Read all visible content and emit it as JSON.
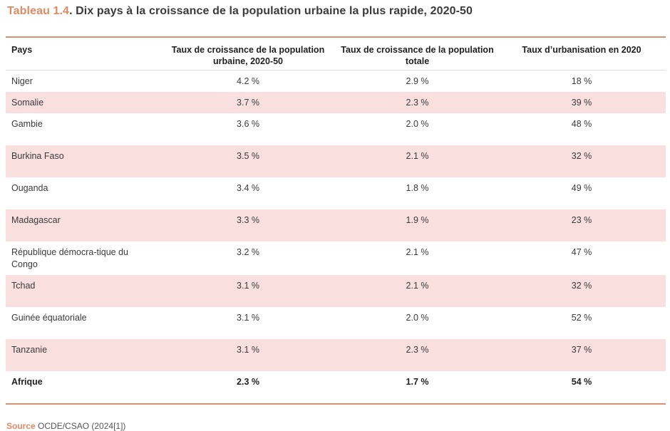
{
  "title": {
    "tag": "Tableau 1.4",
    "text": ". Dix pays à la croissance de la population urbaine la plus rapide, 2020-50"
  },
  "table": {
    "headers": [
      "Pays",
      "Taux de croissance de la population urbaine, 2020-50",
      "Taux de croissance de la population totale",
      "Taux d’urbanisation en 2020"
    ],
    "rows": [
      [
        "Niger",
        "4.2 %",
        "2.9 %",
        "18 %"
      ],
      [
        "Somalie",
        "3.7 %",
        "2.3 %",
        "39 %"
      ],
      [
        "Gambie",
        "3.6 %",
        "2.0 %",
        "48 %"
      ],
      [
        "Burkina Faso",
        "3.5 %",
        "2.1 %",
        "32 %"
      ],
      [
        "Ouganda",
        "3.4 %",
        "1.8 %",
        "49 %"
      ],
      [
        "Madagascar",
        "3.3 %",
        "1.9 %",
        "23 %"
      ],
      [
        "République démocra-tique du Congo",
        "3.2 %",
        "2.1 %",
        "47 %"
      ],
      [
        "Tchad",
        "3.1 %",
        "2.1 %",
        "32 %"
      ],
      [
        "Guinée équatoriale",
        "3.1 %",
        "2.0 %",
        "52 %"
      ],
      [
        "Tanzanie",
        "3.1 %",
        "2.3 %",
        "37 %"
      ],
      [
        "Afrique",
        "2.3 %",
        "1.7 %",
        "54 %"
      ]
    ]
  },
  "source": {
    "label": "Source",
    "text": "OCDE/CSAO (2024[1])"
  },
  "colors": {
    "accent": "#e08a63",
    "rule": "#d99171",
    "row_shade": "#f9e0de"
  }
}
